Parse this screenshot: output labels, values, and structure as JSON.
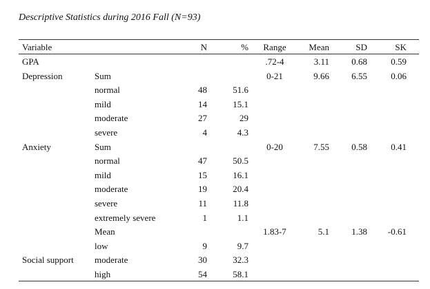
{
  "title": "Descriptive Statistics during 2016 Fall (N=93)",
  "headers": {
    "variable": "Variable",
    "n": "N",
    "pct": "%",
    "range": "Range",
    "mean": "Mean",
    "sd": "SD",
    "sk": "SK"
  },
  "rows": [
    {
      "variable": "GPA",
      "sub": "",
      "n": "",
      "pct": "",
      "range": ".72-4",
      "mean": "3.11",
      "sd": "0.68",
      "sk": "0.59"
    },
    {
      "variable": "Depression",
      "sub": "Sum",
      "n": "",
      "pct": "",
      "range": "0-21",
      "mean": "9.66",
      "sd": "6.55",
      "sk": "0.06"
    },
    {
      "variable": "",
      "sub": "normal",
      "n": "48",
      "pct": "51.6",
      "range": "",
      "mean": "",
      "sd": "",
      "sk": ""
    },
    {
      "variable": "",
      "sub": "mild",
      "n": "14",
      "pct": "15.1",
      "range": "",
      "mean": "",
      "sd": "",
      "sk": ""
    },
    {
      "variable": "",
      "sub": "moderate",
      "n": "27",
      "pct": "29",
      "range": "",
      "mean": "",
      "sd": "",
      "sk": ""
    },
    {
      "variable": "",
      "sub": "severe",
      "n": "4",
      "pct": "4.3",
      "range": "",
      "mean": "",
      "sd": "",
      "sk": ""
    },
    {
      "variable": "Anxiety",
      "sub": "Sum",
      "n": "",
      "pct": "",
      "range": "0-20",
      "mean": "7.55",
      "sd": "0.58",
      "sk": "0.41"
    },
    {
      "variable": "",
      "sub": "normal",
      "n": "47",
      "pct": "50.5",
      "range": "",
      "mean": "",
      "sd": "",
      "sk": ""
    },
    {
      "variable": "",
      "sub": "mild",
      "n": "15",
      "pct": "16.1",
      "range": "",
      "mean": "",
      "sd": "",
      "sk": ""
    },
    {
      "variable": "",
      "sub": "moderate",
      "n": "19",
      "pct": "20.4",
      "range": "",
      "mean": "",
      "sd": "",
      "sk": ""
    },
    {
      "variable": "",
      "sub": "severe",
      "n": "11",
      "pct": "11.8",
      "range": "",
      "mean": "",
      "sd": "",
      "sk": ""
    },
    {
      "variable": "",
      "sub": "extremely severe",
      "n": "1",
      "pct": "1.1",
      "range": "",
      "mean": "",
      "sd": "",
      "sk": ""
    },
    {
      "variable": "",
      "sub": "Mean",
      "n": "",
      "pct": "",
      "range": "1.83-7",
      "mean": "5.1",
      "sd": "1.38",
      "sk": "-0.61"
    },
    {
      "variable": "",
      "sub": "low",
      "n": "9",
      "pct": "9.7",
      "range": "",
      "mean": "",
      "sd": "",
      "sk": ""
    },
    {
      "variable": "Social support",
      "sub": "moderate",
      "n": "30",
      "pct": "32.3",
      "range": "",
      "mean": "",
      "sd": "",
      "sk": ""
    },
    {
      "variable": "",
      "sub": "high",
      "n": "54",
      "pct": "58.1",
      "range": "",
      "mean": "",
      "sd": "",
      "sk": ""
    }
  ]
}
